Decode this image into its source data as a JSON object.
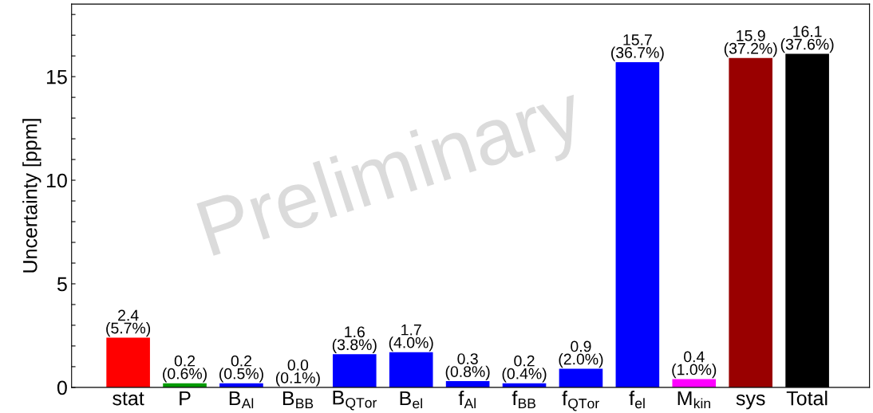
{
  "chart_data": {
    "type": "bar",
    "ylabel": "Uncertainty [ppm]",
    "categories": [
      "stat",
      "P",
      "B$_{Al}$",
      "B$_{BB}$",
      "B$_{QTor}$",
      "B$_{el}$",
      "f$_{Al}$",
      "f$_{BB}$",
      "f$_{QTor}$",
      "f$_{el}$",
      "M$_{kin}$",
      "sys",
      "Total"
    ],
    "values": [
      2.4,
      0.2,
      0.2,
      0.0,
      1.6,
      1.7,
      0.3,
      0.2,
      0.9,
      15.7,
      0.4,
      15.9,
      16.1
    ],
    "colors": [
      "#ff0000",
      "#009900",
      "#0000ff",
      "#0000ff",
      "#0000ff",
      "#0000ff",
      "#0000ff",
      "#0000ff",
      "#0000ff",
      "#0000ff",
      "#ff00ff",
      "#990000",
      "#000000"
    ],
    "value_labels": [
      "2.4\n(5.7%)",
      "0.2\n(0.6%)",
      "0.2\n(0.5%)",
      "0.0\n(0.1%)",
      "1.6\n(3.8%)",
      "1.7\n(4.0%)",
      "0.3\n(0.8%)",
      "0.2\n(0.4%)",
      "0.9\n(2.0%)",
      "15.7\n(36.7%)",
      "0.4\n(1.0%)",
      "15.9\n(37.2%)",
      "16.1\n(37.6%)"
    ],
    "ylim": [
      0,
      18.5
    ],
    "yticks": [
      0,
      {
        "value": 1,
        "label": null
      },
      {
        "value": 2,
        "label": null
      },
      {
        "value": 3,
        "label": null
      },
      {
        "value": 4,
        "label": null
      },
      5,
      {
        "value": 6,
        "label": null
      },
      {
        "value": 7,
        "label": null
      },
      {
        "value": 8,
        "label": null
      },
      {
        "value": 9,
        "label": null
      },
      10,
      {
        "value": 11,
        "label": null
      },
      {
        "value": 12,
        "label": null
      },
      {
        "value": 13,
        "label": null
      },
      {
        "value": 14,
        "label": null
      },
      15,
      {
        "value": 16,
        "label": null
      },
      {
        "value": 17,
        "label": null
      },
      {
        "value": 18,
        "label": null
      }
    ],
    "annotations": [
      "Preliminary"
    ],
    "grid": false
  }
}
